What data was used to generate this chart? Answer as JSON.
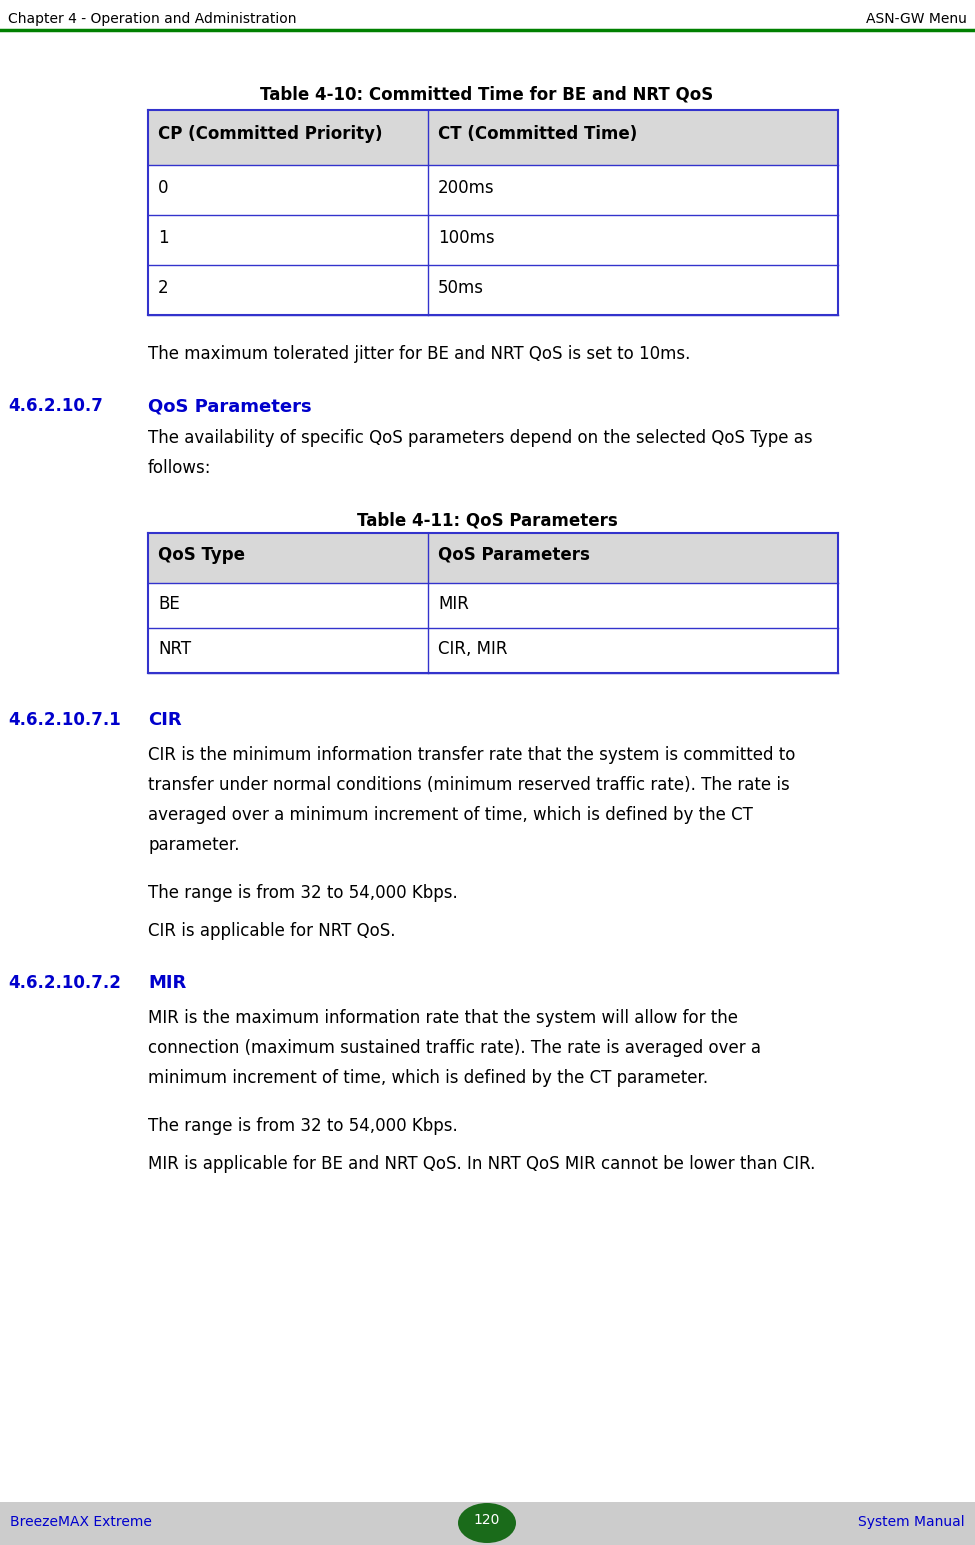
{
  "header_left": "Chapter 4 - Operation and Administration",
  "header_right": "ASN-GW Menu",
  "header_line_color": "#008000",
  "footer_left": "BreezeMAX Extreme",
  "footer_right": "System Manual",
  "footer_page": "120",
  "footer_bg": "#cccccc",
  "footer_text_color": "#0000cc",
  "footer_page_bg": "#1a6b1a",
  "table1_title": "Table 4-10: Committed Time for BE and NRT QoS",
  "table1_headers": [
    "CP (Committed Priority)",
    "CT (Committed Time)"
  ],
  "table1_rows": [
    [
      "0",
      "200ms"
    ],
    [
      "1",
      "100ms"
    ],
    [
      "2",
      "50ms"
    ]
  ],
  "table1_header_bg": "#d8d8d8",
  "table1_border_color": "#3333cc",
  "jitter_text": "The maximum tolerated jitter for BE and NRT QoS is set to 10ms.",
  "section_407_num": "4.6.2.10.7",
  "section_407_title": "QoS Parameters",
  "section_407_line1": "The availability of specific QoS parameters depend on the selected QoS Type as",
  "section_407_line2": "follows:",
  "table2_title": "Table 4-11: QoS Parameters",
  "table2_headers": [
    "QoS Type",
    "QoS Parameters"
  ],
  "table2_rows": [
    [
      "BE",
      "MIR"
    ],
    [
      "NRT",
      "CIR, MIR"
    ]
  ],
  "table2_header_bg": "#d8d8d8",
  "table2_border_color": "#3333cc",
  "section_4071_num": "4.6.2.10.7.1",
  "section_4071_title": "CIR",
  "section_4071_lines": [
    "CIR is the minimum information transfer rate that the system is committed to",
    "transfer under normal conditions (minimum reserved traffic rate). The rate is",
    "averaged over a minimum increment of time, which is defined by the CT",
    "parameter."
  ],
  "section_4071_body2": "The range is from 32 to 54,000 Kbps.",
  "section_4071_body3": "CIR is applicable for NRT QoS.",
  "section_4072_num": "4.6.2.10.7.2",
  "section_4072_title": "MIR",
  "section_4072_lines": [
    "MIR is the maximum information rate that the system will allow for the",
    "connection (maximum sustained traffic rate). The rate is averaged over a",
    "minimum increment of time, which is defined by the CT parameter."
  ],
  "section_4072_body2": "The range is from 32 to 54,000 Kbps.",
  "section_4072_body3": "MIR is applicable for BE and NRT QoS. In NRT QoS MIR cannot be lower than CIR.",
  "section_color": "#0000cc",
  "body_color": "#000000",
  "bg_color": "#ffffff",
  "title_fontsize": 12,
  "header_fontsize": 10,
  "body_fontsize": 12,
  "table_fontsize": 12,
  "section_num_fontsize": 12,
  "section_title_fontsize": 13
}
